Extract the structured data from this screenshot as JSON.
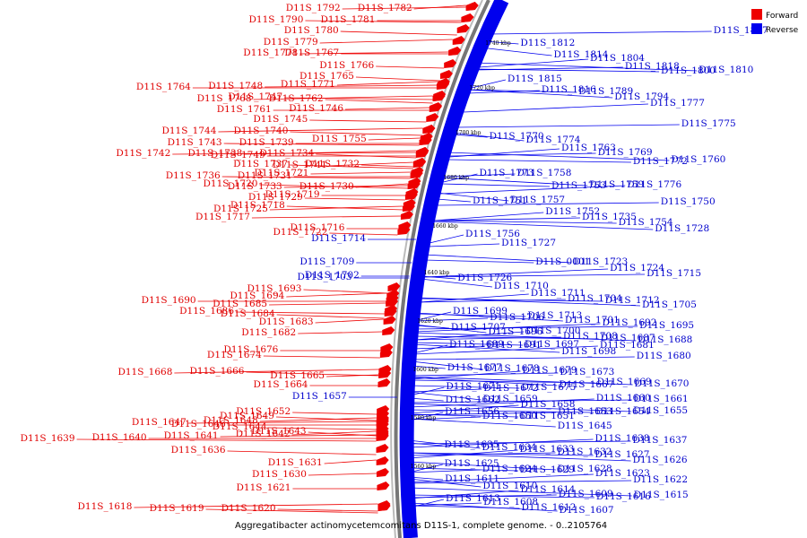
{
  "legend": [
    {
      "label": "Forward",
      "color": "#ee0000"
    },
    {
      "label": "Reverse",
      "color": "#0000ee"
    }
  ],
  "caption": "Aggregatibacter actinomycetemcomitans D11S-1, complete genome. - 0..2105764",
  "ruler_ticks": [
    "1740 kbp",
    "1720 kbp",
    "1700 kbp",
    "1680 kbp",
    "1660 kbp",
    "1640 kbp",
    "1620 kbp",
    "1600 kbp",
    "1580 kbp",
    "1560 kbp"
  ],
  "forward_labels": [
    {
      "label": "D11S_1782",
      "row": 8
    },
    {
      "label": "D11S_1792",
      "row": 8
    },
    {
      "label": "D11S_1781",
      "row": 21
    },
    {
      "label": "D11S_1790",
      "row": 21
    },
    {
      "label": "D11S_1780",
      "row": 33
    },
    {
      "label": "D11S_1779",
      "row": 46
    },
    {
      "label": "D11S_1778",
      "row": 58
    },
    {
      "label": "D11S_1767",
      "row": 58
    },
    {
      "label": "D11S_1766",
      "row": 72
    },
    {
      "label": "D11S_1765",
      "row": 84
    },
    {
      "label": "D11S_1771",
      "row": 93
    },
    {
      "label": "D11S_1748",
      "row": 95
    },
    {
      "label": "D11S_1764",
      "row": 96
    },
    {
      "label": "D11S_1747",
      "row": 107
    },
    {
      "label": "D11S_1762",
      "row": 109
    },
    {
      "label": "D11S_1768",
      "row": 109
    },
    {
      "label": "D11S_1746",
      "row": 120
    },
    {
      "label": "D11S_1761",
      "row": 121
    },
    {
      "label": "D11S_1745",
      "row": 132
    },
    {
      "label": "D11S_1740",
      "row": 145
    },
    {
      "label": "D11S_1744",
      "row": 145
    },
    {
      "label": "D11S_1755",
      "row": 154
    },
    {
      "label": "D11S_1739",
      "row": 158
    },
    {
      "label": "D11S_1743",
      "row": 158
    },
    {
      "label": "D11S_1734",
      "row": 170
    },
    {
      "label": "D11S_1738",
      "row": 170
    },
    {
      "label": "D11S_1742",
      "row": 170
    },
    {
      "label": "D11S_1749",
      "row": 172
    },
    {
      "label": "D11S_1732",
      "row": 182
    },
    {
      "label": "D11S_1737",
      "row": 182
    },
    {
      "label": "D11S_1741",
      "row": 183
    },
    {
      "label": "D11S_1721",
      "row": 192
    },
    {
      "label": "D11S_1731",
      "row": 195
    },
    {
      "label": "D11S_1736",
      "row": 195
    },
    {
      "label": "D11S_1720",
      "row": 204
    },
    {
      "label": "D11S_1730",
      "row": 207
    },
    {
      "label": "D11S_1733",
      "row": 207
    },
    {
      "label": "D11S_1719",
      "row": 216
    },
    {
      "label": "D11S_1729",
      "row": 219
    },
    {
      "label": "D11S_1718",
      "row": 228
    },
    {
      "label": "D11S_1725",
      "row": 232
    },
    {
      "label": "D11S_1717",
      "row": 241
    },
    {
      "label": "D11S_1716",
      "row": 253
    },
    {
      "label": "D11S_1722",
      "row": 258
    },
    {
      "label": "D11S_1693",
      "row": 321
    },
    {
      "label": "D11S_1694",
      "row": 329
    },
    {
      "label": "D11S_1685",
      "row": 338
    },
    {
      "label": "D11S_1690",
      "row": 334
    },
    {
      "label": "D11S_1686",
      "row": 346
    },
    {
      "label": "D11S_1684",
      "row": 349
    },
    {
      "label": "D11S_1683",
      "row": 358
    },
    {
      "label": "D11S_1682",
      "row": 370
    },
    {
      "label": "D11S_1676",
      "row": 389
    },
    {
      "label": "D11S_1674",
      "row": 395
    },
    {
      "label": "D11S_1666",
      "row": 413
    },
    {
      "label": "D11S_1668",
      "row": 414
    },
    {
      "label": "D11S_1665",
      "row": 418
    },
    {
      "label": "D11S_1664",
      "row": 428
    },
    {
      "label": "D11S_1652",
      "row": 458
    },
    {
      "label": "D11S_1649",
      "row": 463
    },
    {
      "label": "D11S_1648",
      "row": 468
    },
    {
      "label": "D11S_1647",
      "row": 470
    },
    {
      "label": "D11S_1646",
      "row": 472
    },
    {
      "label": "D11S_1644",
      "row": 475
    },
    {
      "label": "D11S_1643",
      "row": 480
    },
    {
      "label": "D11S_1642",
      "row": 483
    },
    {
      "label": "D11S_1641",
      "row": 485
    },
    {
      "label": "D11S_1640",
      "row": 487
    },
    {
      "label": "D11S_1639",
      "row": 488
    },
    {
      "label": "D11S_1636",
      "row": 501
    },
    {
      "label": "D11S_1631",
      "row": 515
    },
    {
      "label": "D11S_1630",
      "row": 528
    },
    {
      "label": "D11S_1621",
      "row": 543
    },
    {
      "label": "D11S_1620",
      "row": 566
    },
    {
      "label": "D11S_1619",
      "row": 566
    },
    {
      "label": "D11S_1618",
      "row": 564
    }
  ],
  "reverse_labels": [
    {
      "label": "D11S_1714",
      "row": 265
    },
    {
      "label": "D11S_1709",
      "row": 291
    },
    {
      "label": "D11S_1702",
      "row": 306
    },
    {
      "label": "D11S_1703",
      "row": 308
    },
    {
      "label": "D11S_1657",
      "row": 441
    },
    {
      "label": "D11S_1817",
      "row": 33
    },
    {
      "label": "D11S_1812",
      "row": 47
    },
    {
      "label": "D11S_1814",
      "row": 60
    },
    {
      "label": "D11S_1804",
      "row": 64
    },
    {
      "label": "D11S_1818",
      "row": 73
    },
    {
      "label": "D11S_1800",
      "row": 78
    },
    {
      "label": "D11S_1810",
      "row": 77
    },
    {
      "label": "D11S_1815",
      "row": 87
    },
    {
      "label": "D11S_1816",
      "row": 99
    },
    {
      "label": "D11S_1789",
      "row": 101
    },
    {
      "label": "D11S_1794",
      "row": 107
    },
    {
      "label": "D11S_1777",
      "row": 114
    },
    {
      "label": "D11S_1775",
      "row": 137
    },
    {
      "label": "D11S_1770",
      "row": 151
    },
    {
      "label": "D11S_1774",
      "row": 155
    },
    {
      "label": "D11S_1763",
      "row": 164
    },
    {
      "label": "D11S_1769",
      "row": 169
    },
    {
      "label": "D11S_1772",
      "row": 179
    },
    {
      "label": "D11S_1760",
      "row": 177
    },
    {
      "label": "D11S_1773",
      "row": 192
    },
    {
      "label": "D11S_1758",
      "row": 192
    },
    {
      "label": "D11S_1753",
      "row": 206
    },
    {
      "label": "D11S_1759",
      "row": 205
    },
    {
      "label": "D11S_1776",
      "row": 205
    },
    {
      "label": "D11S_1750",
      "row": 224
    },
    {
      "label": "D11S_1751",
      "row": 223
    },
    {
      "label": "D11S_1757",
      "row": 222
    },
    {
      "label": "D11S_1752",
      "row": 235
    },
    {
      "label": "D11S_1735",
      "row": 241
    },
    {
      "label": "D11S_1754",
      "row": 247
    },
    {
      "label": "D11S_1728",
      "row": 254
    },
    {
      "label": "D11S_1756",
      "row": 260
    },
    {
      "label": "D11S_1727",
      "row": 270
    },
    {
      "label": "D11S_0001",
      "row": 291
    },
    {
      "label": "D11S_1723",
      "row": 291
    },
    {
      "label": "D11S_1724",
      "row": 298
    },
    {
      "label": "D11S_1715",
      "row": 304
    },
    {
      "label": "D11S_1726",
      "row": 309
    },
    {
      "label": "D11S_1710",
      "row": 318
    },
    {
      "label": "D11S_1711",
      "row": 326
    },
    {
      "label": "D11S_1704",
      "row": 332
    },
    {
      "label": "D11S_1712",
      "row": 334
    },
    {
      "label": "D11S_1705",
      "row": 339
    },
    {
      "label": "D11S_1699",
      "row": 346
    },
    {
      "label": "D11S_1706",
      "row": 353
    },
    {
      "label": "D11S_1713",
      "row": 351
    },
    {
      "label": "D11S_1701",
      "row": 356
    },
    {
      "label": "D11S_1692",
      "row": 359
    },
    {
      "label": "D11S_1695",
      "row": 362
    },
    {
      "label": "D11S_1707",
      "row": 364
    },
    {
      "label": "D11S_1696",
      "row": 369
    },
    {
      "label": "D11S_1700",
      "row": 368
    },
    {
      "label": "D11S_1708",
      "row": 374
    },
    {
      "label": "D11S_1687",
      "row": 376
    },
    {
      "label": "D11S_1688",
      "row": 378
    },
    {
      "label": "D11S_1689",
      "row": 383
    },
    {
      "label": "D11S_1691",
      "row": 384
    },
    {
      "label": "D11S_1697",
      "row": 383
    },
    {
      "label": "D11S_1698",
      "row": 391
    },
    {
      "label": "D11S_1681",
      "row": 384
    },
    {
      "label": "D11S_1680",
      "row": 396
    },
    {
      "label": "D11S_1677",
      "row": 409
    },
    {
      "label": "D11S_1678",
      "row": 410
    },
    {
      "label": "D11S_1679",
      "row": 412
    },
    {
      "label": "D11S_1673",
      "row": 414
    },
    {
      "label": "D11S_1669",
      "row": 425
    },
    {
      "label": "D11S_1670",
      "row": 427
    },
    {
      "label": "D11S_1671",
      "row": 430
    },
    {
      "label": "D11S_1672",
      "row": 432
    },
    {
      "label": "D11S_1675",
      "row": 431
    },
    {
      "label": "D11S_1667",
      "row": 428
    },
    {
      "label": "D11S_1660",
      "row": 443
    },
    {
      "label": "D11S_1661",
      "row": 444
    },
    {
      "label": "D11S_1662",
      "row": 445
    },
    {
      "label": "D11S_1659",
      "row": 444
    },
    {
      "label": "D11S_1658",
      "row": 450
    },
    {
      "label": "D11S_1653",
      "row": 458
    },
    {
      "label": "D11S_1654",
      "row": 458
    },
    {
      "label": "D11S_1655",
      "row": 457
    },
    {
      "label": "D11S_1656",
      "row": 458
    },
    {
      "label": "D11S_1650",
      "row": 463
    },
    {
      "label": "D11S_1651",
      "row": 463
    },
    {
      "label": "D11S_1645",
      "row": 474
    },
    {
      "label": "D11S_1638",
      "row": 488
    },
    {
      "label": "D11S_1637",
      "row": 490
    },
    {
      "label": "D11S_1635",
      "row": 495
    },
    {
      "label": "D11S_1634",
      "row": 498
    },
    {
      "label": "D11S_1633",
      "row": 500
    },
    {
      "label": "D11S_1632",
      "row": 503
    },
    {
      "label": "D11S_1627",
      "row": 506
    },
    {
      "label": "D11S_1626",
      "row": 512
    },
    {
      "label": "D11S_1625",
      "row": 516
    },
    {
      "label": "D11S_1624",
      "row": 522
    },
    {
      "label": "D11S_1629",
      "row": 523
    },
    {
      "label": "D11S_1628",
      "row": 522
    },
    {
      "label": "D11S_1623",
      "row": 527
    },
    {
      "label": "D11S_1622",
      "row": 534
    },
    {
      "label": "D11S_1611",
      "row": 533
    },
    {
      "label": "D11S_1610",
      "row": 541
    },
    {
      "label": "D11S_1614",
      "row": 545
    },
    {
      "label": "D11S_1609",
      "row": 550
    },
    {
      "label": "D11S_1616",
      "row": 553
    },
    {
      "label": "D11S_1615",
      "row": 551
    },
    {
      "label": "D11S_1613",
      "row": 555
    },
    {
      "label": "D11S_1608",
      "row": 559
    },
    {
      "label": "D11S_1612",
      "row": 565
    },
    {
      "label": "D11S_1607",
      "row": 568
    }
  ]
}
